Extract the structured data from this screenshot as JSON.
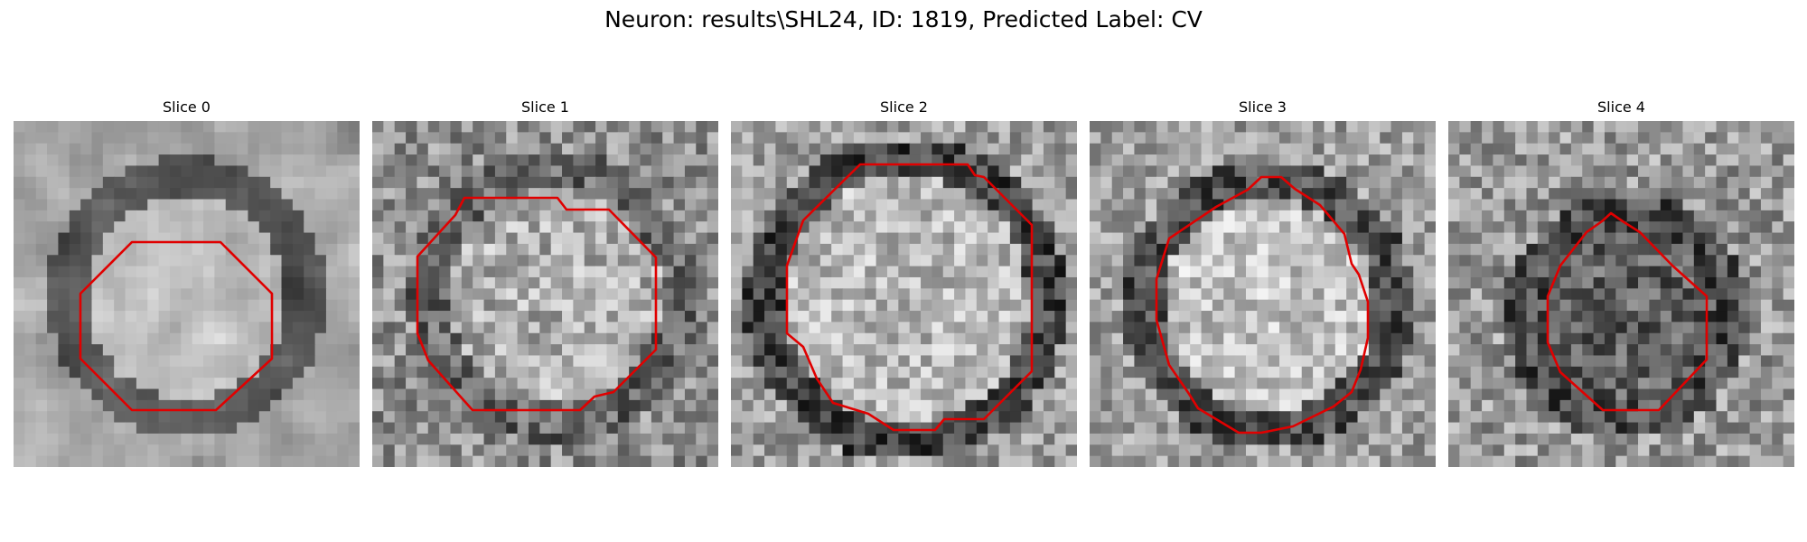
{
  "figure": {
    "title": "Neuron: results\\SHL24, ID: 1819, Predicted Label: CV"
  },
  "contour_color": "#e00000",
  "panels": [
    {
      "title": "Slice 0",
      "pattern": "blurry ring, bright center"
    },
    {
      "title": "Slice 1",
      "pattern": "noisy, bright center"
    },
    {
      "title": "Slice 2",
      "pattern": "noisy, bright center, dark rim"
    },
    {
      "title": "Slice 3",
      "pattern": "noisy, bright center, dark rim"
    },
    {
      "title": "Slice 4",
      "pattern": "noisy, dark center"
    }
  ]
}
